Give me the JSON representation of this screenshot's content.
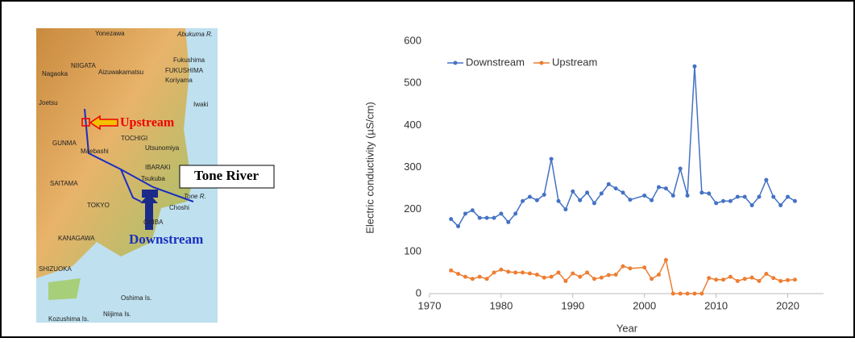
{
  "map": {
    "labels": [
      "Yonezawa",
      "Abukuma R.",
      "NIIGATA",
      "Fukushima",
      "FUKUSHIMA",
      "Nagaoka",
      "Aizuwakamatsu",
      "Koriyama",
      "Joetsu",
      "Iwaki",
      "Upstream",
      "GUNMA",
      "TOCHIGI",
      "Utsunomiya",
      "Maebashi",
      "IBARAKI",
      "Tsukuba",
      "SAITAMA",
      "TOKYO",
      "Tone R.",
      "Choshi",
      "CHIBA",
      "KANAGAWA",
      "Downstream",
      "SHIZUOKA",
      "Oshima Is.",
      "Niijima Is.",
      "Kozushima Is.",
      "Tone River"
    ]
  },
  "chart_data": {
    "type": "line",
    "x_label": "Year",
    "y_label": "Electric conductivity (µS/cm)",
    "x": [
      1973,
      1974,
      1975,
      1976,
      1977,
      1978,
      1979,
      1980,
      1981,
      1982,
      1983,
      1984,
      1985,
      1986,
      1987,
      1988,
      1989,
      1990,
      1991,
      1992,
      1993,
      1994,
      1995,
      1996,
      1997,
      1998,
      2000,
      2001,
      2002,
      2003,
      2004,
      2005,
      2006,
      2007,
      2008,
      2009,
      2010,
      2011,
      2012,
      2013,
      2014,
      2015,
      2016,
      2017,
      2018,
      2019,
      2020,
      2021
    ],
    "series": [
      {
        "name": "Downstream",
        "color": "#4472c4",
        "values": [
          177,
          160,
          190,
          198,
          180,
          180,
          180,
          190,
          170,
          190,
          220,
          230,
          222,
          235,
          320,
          220,
          200,
          243,
          222,
          240,
          215,
          238,
          260,
          250,
          240,
          223,
          233,
          222,
          253,
          250,
          233,
          297,
          233,
          540,
          240,
          238,
          215,
          220,
          220,
          230,
          230,
          210,
          230,
          270,
          230,
          210,
          230,
          220
        ]
      },
      {
        "name": "Upstream",
        "color": "#ed7d31",
        "values": [
          55,
          47,
          40,
          35,
          40,
          35,
          50,
          57,
          52,
          50,
          50,
          48,
          45,
          38,
          40,
          50,
          30,
          48,
          40,
          50,
          35,
          38,
          44,
          45,
          65,
          60,
          62,
          35,
          45,
          80,
          0,
          0,
          0,
          0,
          0,
          37,
          33,
          33,
          40,
          30,
          35,
          38,
          30,
          47,
          37,
          30,
          32,
          33
        ]
      }
    ],
    "xlim": [
      1970,
      2025
    ],
    "xticks": [
      1970,
      1980,
      1990,
      2000,
      2010,
      2020
    ],
    "ylim": [
      0,
      600
    ],
    "yticks": [
      0,
      100,
      200,
      300,
      400,
      500,
      600
    ],
    "grid": false,
    "legend": "top-left"
  }
}
